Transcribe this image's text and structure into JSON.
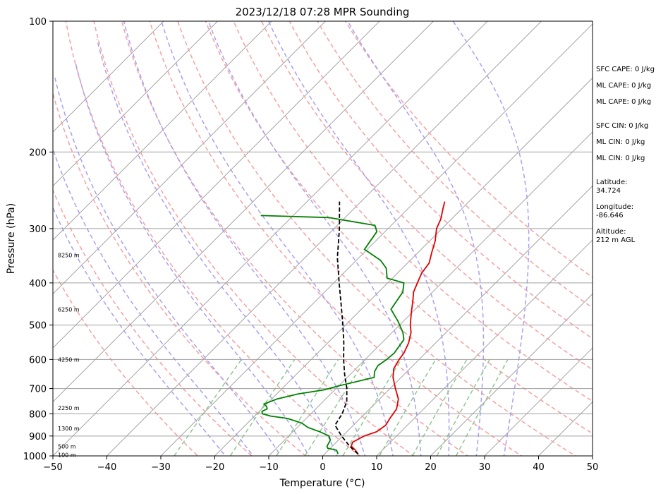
{
  "chart_data": {
    "type": "line",
    "title": "2023/12/18 07:28 MPR Sounding",
    "xlabel": "Temperature (°C)",
    "ylabel": "Pressure (hPa)",
    "xlim": [
      -50,
      50
    ],
    "ylim": [
      1000,
      100
    ],
    "y_scale": "log",
    "skew": true,
    "grid": true,
    "x_ticks": [
      -50,
      -40,
      -30,
      -20,
      -10,
      0,
      10,
      20,
      30,
      40,
      50
    ],
    "y_ticks": [
      100,
      200,
      300,
      400,
      500,
      600,
      700,
      800,
      900,
      1000
    ],
    "series": [
      {
        "color": "#e00000",
        "points": [
          [
            6.2,
            990
          ],
          [
            5.0,
            970
          ],
          [
            3.5,
            950
          ],
          [
            3.0,
            930
          ],
          [
            4.0,
            900
          ],
          [
            5.5,
            880
          ],
          [
            6.0,
            850
          ],
          [
            5.5,
            820
          ],
          [
            5.0,
            780
          ],
          [
            3.5,
            740
          ],
          [
            1.0,
            700
          ],
          [
            -1.5,
            660
          ],
          [
            -3.0,
            630
          ],
          [
            -3.7,
            600
          ],
          [
            -4.0,
            580
          ],
          [
            -5.0,
            550
          ],
          [
            -6.5,
            520
          ],
          [
            -8.0,
            500
          ],
          [
            -10.0,
            470
          ],
          [
            -12.0,
            440
          ],
          [
            -13.5,
            420
          ],
          [
            -14.5,
            400
          ],
          [
            -15.5,
            380
          ],
          [
            -16.0,
            360
          ],
          [
            -17.5,
            340
          ],
          [
            -19.0,
            320
          ],
          [
            -21.0,
            300
          ],
          [
            -22.0,
            285
          ],
          [
            -23.5,
            270
          ],
          [
            -24.5,
            260
          ]
        ]
      },
      {
        "color": "#008000",
        "points": [
          [
            2.5,
            990
          ],
          [
            2.0,
            980
          ],
          [
            1.5,
            970
          ],
          [
            -0.5,
            960
          ],
          [
            -1.0,
            950
          ],
          [
            -1.5,
            920
          ],
          [
            -2.5,
            900
          ],
          [
            -5.0,
            880
          ],
          [
            -8.0,
            860
          ],
          [
            -10.0,
            840
          ],
          [
            -13.5,
            820
          ],
          [
            -17.0,
            810
          ],
          [
            -19.0,
            800
          ],
          [
            -19.5,
            790
          ],
          [
            -19.0,
            780
          ],
          [
            -19.5,
            770
          ],
          [
            -20.5,
            760
          ],
          [
            -19.0,
            740
          ],
          [
            -16.0,
            720
          ],
          [
            -12.0,
            705
          ],
          [
            -10.0,
            690
          ],
          [
            -5.0,
            660
          ],
          [
            -6.0,
            640
          ],
          [
            -6.5,
            620
          ],
          [
            -6.0,
            600
          ],
          [
            -5.8,
            580
          ],
          [
            -6.5,
            540
          ],
          [
            -8.0,
            520
          ],
          [
            -11.0,
            490
          ],
          [
            -14.5,
            460
          ],
          [
            -15.0,
            440
          ],
          [
            -15.5,
            420
          ],
          [
            -17.0,
            400
          ],
          [
            -21.0,
            390
          ],
          [
            -23.0,
            370
          ],
          [
            -25.5,
            355
          ],
          [
            -30.5,
            335
          ],
          [
            -31.0,
            320
          ],
          [
            -31.5,
            305
          ],
          [
            -33.0,
            295
          ],
          [
            -43.0,
            283
          ],
          [
            -56.0,
            280
          ]
        ]
      },
      {
        "color": "#000000",
        "dashed": true,
        "points": [
          [
            6.2,
            990
          ],
          [
            3.2,
            950
          ],
          [
            -0.2,
            900
          ],
          [
            -3.4,
            850
          ],
          [
            -4.2,
            800
          ],
          [
            -5.6,
            750
          ],
          [
            -8.0,
            700
          ],
          [
            -11.0,
            650
          ],
          [
            -14.0,
            600
          ],
          [
            -17.0,
            550
          ],
          [
            -20.5,
            500
          ],
          [
            -24.5,
            450
          ],
          [
            -29.0,
            400
          ],
          [
            -34.0,
            350
          ],
          [
            -39.0,
            300
          ],
          [
            -44.0,
            260
          ]
        ]
      }
    ],
    "height_labels": [
      {
        "label": "100 m",
        "p": 995
      },
      {
        "label": "500 m",
        "p": 950
      },
      {
        "label": "1300 m",
        "p": 865
      },
      {
        "label": "2250 m",
        "p": 775
      },
      {
        "label": "4250 m",
        "p": 600
      },
      {
        "label": "6250 m",
        "p": 460
      },
      {
        "label": "8250 m",
        "p": 345
      }
    ],
    "reference_lines": {
      "isotherms_c": [
        -110,
        -100,
        -90,
        -80,
        -70,
        -60,
        -50,
        -40,
        -30,
        -20,
        -10,
        0,
        10,
        20,
        30,
        40,
        50
      ],
      "dry_adiabats_k": [
        250,
        260,
        270,
        280,
        290,
        300,
        310,
        320,
        330,
        340,
        350,
        360,
        370,
        380
      ],
      "moist_adiabats_c": [
        -15,
        -10,
        -5,
        0,
        5,
        10,
        15,
        20,
        25,
        30,
        35
      ],
      "mixing_ratios_gkg": [
        0.4,
        1,
        2,
        3,
        5,
        8,
        12,
        16,
        20
      ],
      "isotherm_color": "#999999",
      "dry_adiabat_color": "#f5a0a0",
      "moist_adiabat_color": "#a8a0f0",
      "mixing_ratio_color": "#90c890"
    }
  },
  "sidebar": {
    "sfc_cape": "SFC CAPE: 0 J/kg",
    "ml_cape_1": "ML CAPE: 0 J/kg",
    "ml_cape_2": "ML CAPE: 0 J/kg",
    "sfc_cin": "SFC CIN: 0 J/kg",
    "ml_cin_1": "ML CIN: 0 J/kg",
    "ml_cin_2": "ML CIN: 0 J/kg",
    "latitude": "Latitude:\n34.724",
    "longitude": "Longitude:\n-86.646",
    "altitude": "Altitude:\n212 m AGL"
  }
}
